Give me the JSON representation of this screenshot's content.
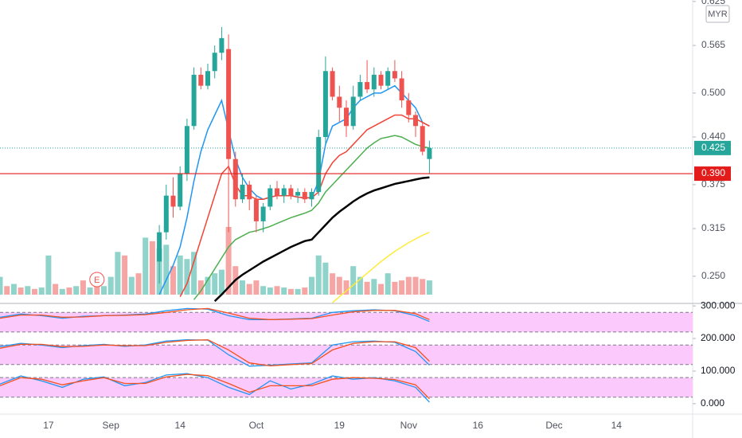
{
  "chart_data": [
    {
      "type": "candlestick",
      "currency": "MYR",
      "xlim": [
        0,
        100
      ],
      "xticks": [
        {
          "value": 7,
          "label": "17"
        },
        {
          "value": 16,
          "label": "Sep"
        },
        {
          "value": 26,
          "label": "14"
        },
        {
          "value": 37,
          "label": "Oct"
        },
        {
          "value": 49,
          "label": "19"
        },
        {
          "value": 59,
          "label": "Nov"
        },
        {
          "value": 69,
          "label": "16"
        },
        {
          "value": 80,
          "label": "Dec"
        },
        {
          "value": 89,
          "label": "14"
        }
      ],
      "ylim": [
        0.214,
        0.627
      ],
      "yticks": [
        {
          "value": 0.25,
          "label": "0.250"
        },
        {
          "value": 0.315,
          "label": "0.315"
        },
        {
          "value": 0.375,
          "label": "0.375"
        },
        {
          "value": 0.44,
          "label": "0.440"
        },
        {
          "value": 0.5,
          "label": "0.500"
        },
        {
          "value": 0.565,
          "label": "0.565"
        },
        {
          "value": 0.625,
          "label": "0.625"
        }
      ],
      "up_color": "#26a69a",
      "down_color": "#ef5350",
      "x": [
        23,
        24,
        25,
        26,
        27,
        28,
        29,
        30,
        31,
        32,
        33,
        34,
        35,
        36,
        37,
        38,
        39,
        40,
        41,
        42,
        43,
        44,
        45,
        46,
        47,
        48,
        49,
        50,
        51,
        52,
        53,
        54,
        55,
        56,
        57,
        58,
        59,
        60,
        61,
        62
      ],
      "open": [
        0.27,
        0.31,
        0.36,
        0.345,
        0.39,
        0.455,
        0.525,
        0.51,
        0.53,
        0.555,
        0.56,
        0.41,
        0.355,
        0.375,
        0.355,
        0.325,
        0.345,
        0.37,
        0.36,
        0.37,
        0.36,
        0.365,
        0.355,
        0.365,
        0.44,
        0.53,
        0.495,
        0.48,
        0.455,
        0.495,
        0.515,
        0.505,
        0.525,
        0.51,
        0.53,
        0.52,
        0.49,
        0.47,
        0.455,
        0.41
      ],
      "high": [
        0.32,
        0.375,
        0.385,
        0.4,
        0.465,
        0.535,
        0.535,
        0.54,
        0.565,
        0.59,
        0.58,
        0.42,
        0.39,
        0.38,
        0.36,
        0.35,
        0.375,
        0.38,
        0.375,
        0.375,
        0.37,
        0.37,
        0.37,
        0.45,
        0.55,
        0.535,
        0.51,
        0.49,
        0.51,
        0.525,
        0.545,
        0.535,
        0.53,
        0.535,
        0.545,
        0.53,
        0.5,
        0.475,
        0.46,
        0.435
      ],
      "low": [
        0.24,
        0.3,
        0.33,
        0.34,
        0.38,
        0.45,
        0.505,
        0.505,
        0.52,
        0.545,
        0.31,
        0.345,
        0.35,
        0.34,
        0.31,
        0.31,
        0.34,
        0.355,
        0.35,
        0.355,
        0.35,
        0.35,
        0.345,
        0.36,
        0.43,
        0.49,
        0.46,
        0.44,
        0.45,
        0.49,
        0.5,
        0.495,
        0.505,
        0.505,
        0.515,
        0.48,
        0.46,
        0.44,
        0.415,
        0.39
      ],
      "close": [
        0.31,
        0.36,
        0.345,
        0.39,
        0.455,
        0.525,
        0.51,
        0.53,
        0.555,
        0.575,
        0.41,
        0.355,
        0.375,
        0.355,
        0.325,
        0.345,
        0.37,
        0.36,
        0.37,
        0.36,
        0.365,
        0.355,
        0.365,
        0.44,
        0.53,
        0.495,
        0.48,
        0.455,
        0.495,
        0.515,
        0.505,
        0.525,
        0.51,
        0.53,
        0.52,
        0.49,
        0.47,
        0.455,
        0.42,
        0.425
      ],
      "series": [
        {
          "color": "#2196f3",
          "line_width": 1.5,
          "values": [
            0.225,
            0.245,
            0.265,
            0.29,
            0.33,
            0.38,
            0.42,
            0.45,
            0.47,
            0.49,
            0.45,
            0.41,
            0.385,
            0.37,
            0.36,
            0.355,
            0.358,
            0.36,
            0.36,
            0.36,
            0.358,
            0.357,
            0.357,
            0.38,
            0.43,
            0.455,
            0.46,
            0.465,
            0.48,
            0.49,
            0.495,
            0.5,
            0.5,
            0.505,
            0.51,
            0.5,
            0.49,
            0.48,
            0.46,
            0.455
          ]
        },
        {
          "color": "#f44336",
          "line_width": 1.5,
          "values": [
            null,
            null,
            null,
            0.222,
            0.24,
            0.27,
            0.3,
            0.33,
            0.36,
            0.39,
            0.4,
            0.375,
            0.36,
            0.36,
            0.355,
            0.355,
            0.358,
            0.36,
            0.36,
            0.36,
            0.358,
            0.357,
            0.357,
            0.365,
            0.39,
            0.405,
            0.415,
            0.42,
            0.43,
            0.44,
            0.45,
            0.455,
            0.46,
            0.465,
            0.47,
            0.47,
            0.465,
            0.465,
            0.46,
            0.455
          ]
        },
        {
          "color": "#4caf50",
          "line_width": 1.5,
          "values": [
            null,
            null,
            null,
            null,
            null,
            0.218,
            0.23,
            0.245,
            0.26,
            0.275,
            0.29,
            0.3,
            0.305,
            0.31,
            0.312,
            0.315,
            0.318,
            0.322,
            0.326,
            0.33,
            0.333,
            0.336,
            0.34,
            0.35,
            0.365,
            0.375,
            0.385,
            0.395,
            0.405,
            0.415,
            0.425,
            0.432,
            0.438,
            0.44,
            0.442,
            0.44,
            0.435,
            0.43,
            0.427,
            0.425
          ]
        },
        {
          "color": "#000000",
          "line_width": 2.5,
          "values": [
            null,
            null,
            null,
            null,
            null,
            null,
            null,
            null,
            0.216,
            0.225,
            0.235,
            0.245,
            0.252,
            0.258,
            0.264,
            0.27,
            0.275,
            0.28,
            0.285,
            0.29,
            0.294,
            0.298,
            0.3,
            0.31,
            0.32,
            0.33,
            0.338,
            0.345,
            0.352,
            0.358,
            0.363,
            0.367,
            0.37,
            0.373,
            0.376,
            0.378,
            0.38,
            0.382,
            0.384,
            0.385
          ]
        },
        {
          "color": "#ffeb3b",
          "line_width": 1.5,
          "values": [
            null,
            null,
            null,
            null,
            null,
            null,
            null,
            null,
            null,
            null,
            null,
            null,
            null,
            null,
            null,
            null,
            null,
            null,
            null,
            null,
            null,
            null,
            null,
            null,
            null,
            0.214,
            0.222,
            0.23,
            0.238,
            0.246,
            0.254,
            0.262,
            0.27,
            0.277,
            0.284,
            0.29,
            0.296,
            0.301,
            0.306,
            0.31
          ]
        }
      ],
      "volume": {
        "up_color": "#8fd3cb",
        "down_color": "#f5a6a4",
        "x": [
          0,
          1,
          2,
          3,
          4,
          5,
          6,
          7,
          8,
          9,
          10,
          11,
          12,
          13,
          14,
          15,
          16,
          17,
          18,
          19,
          20,
          21,
          22,
          23,
          24,
          25,
          26,
          27,
          28,
          29,
          30,
          31,
          32,
          33,
          34,
          35,
          36,
          37,
          38,
          39,
          40,
          41,
          42,
          43,
          44,
          45,
          46,
          47,
          48,
          49,
          50,
          51,
          52,
          53,
          54,
          55,
          56,
          57,
          58,
          59,
          60,
          61,
          62
        ],
        "values": [
          25,
          12,
          15,
          10,
          12,
          8,
          10,
          55,
          15,
          8,
          10,
          12,
          20,
          10,
          18,
          12,
          25,
          60,
          55,
          25,
          30,
          80,
          75,
          65,
          70,
          40,
          55,
          50,
          60,
          20,
          25,
          30,
          35,
          95,
          40,
          20,
          15,
          20,
          12,
          10,
          12,
          10,
          8,
          8,
          10,
          25,
          55,
          45,
          30,
          25,
          20,
          40,
          25,
          18,
          22,
          15,
          30,
          18,
          20,
          25,
          25,
          22,
          20
        ],
        "up": [
          true,
          false,
          true,
          false,
          true,
          false,
          true,
          true,
          false,
          true,
          false,
          true,
          false,
          true,
          false,
          true,
          true,
          true,
          false,
          true,
          false,
          true,
          false,
          true,
          true,
          false,
          true,
          true,
          true,
          false,
          true,
          true,
          true,
          false,
          false,
          true,
          false,
          false,
          true,
          true,
          false,
          true,
          false,
          true,
          false,
          true,
          true,
          true,
          false,
          false,
          false,
          true,
          true,
          false,
          true,
          false,
          true,
          false,
          false,
          false,
          false,
          false,
          true
        ]
      },
      "last_price": {
        "value": 0.425,
        "label": "0.425",
        "color": "#26a69a"
      },
      "price_line": {
        "value": 0.39,
        "label": "0.390",
        "color": "#e31b1b"
      },
      "event": {
        "x": 14,
        "label": "E",
        "color": "#ef5350"
      }
    },
    {
      "type": "line",
      "xlim": [
        0,
        100
      ],
      "ylim": [
        -32,
        310
      ],
      "yticks": [
        {
          "value": 0,
          "label": "0.000"
        },
        {
          "value": 100,
          "label": "100.000"
        },
        {
          "value": 200,
          "label": "200.000"
        },
        {
          "value": 300,
          "label": "300.000"
        }
      ],
      "band_color": "#fbc9fb",
      "x": [
        0,
        3,
        6,
        9,
        12,
        15,
        18,
        21,
        24,
        27,
        30,
        33,
        36,
        39,
        42,
        45,
        48,
        51,
        54,
        57,
        60,
        62
      ],
      "panels": [
        {
          "band": [
            220,
            280
          ],
          "series": [
            {
              "color": "#2196f3",
              "values": [
                265,
                275,
                270,
                262,
                268,
                270,
                272,
                275,
                285,
                292,
                290,
                270,
                258,
                258,
                260,
                262,
                280,
                285,
                288,
                285,
                270,
                252
              ]
            },
            {
              "color": "#f4511e",
              "values": [
                262,
                272,
                272,
                265,
                266,
                270,
                271,
                273,
                280,
                288,
                292,
                278,
                262,
                258,
                259,
                261,
                272,
                282,
                286,
                286,
                276,
                258
              ]
            }
          ]
        },
        {
          "band": [
            120,
            180
          ],
          "series": [
            {
              "color": "#2196f3",
              "values": [
                175,
                185,
                180,
                172,
                178,
                182,
                176,
                180,
                192,
                196,
                195,
                150,
                115,
                118,
                122,
                125,
                180,
                190,
                192,
                188,
                160,
                118
              ]
            },
            {
              "color": "#f4511e",
              "values": [
                170,
                182,
                182,
                175,
                176,
                180,
                178,
                178,
                188,
                194,
                196,
                165,
                125,
                116,
                120,
                123,
                165,
                185,
                190,
                190,
                172,
                130
              ]
            }
          ]
        },
        {
          "band": [
            20,
            80
          ],
          "series": [
            {
              "color": "#2196f3",
              "values": [
                60,
                85,
                70,
                50,
                75,
                82,
                55,
                65,
                88,
                92,
                80,
                50,
                28,
                70,
                45,
                60,
                85,
                75,
                80,
                70,
                50,
                5
              ]
            },
            {
              "color": "#f4511e",
              "values": [
                55,
                80,
                75,
                58,
                70,
                80,
                62,
                62,
                82,
                90,
                86,
                62,
                35,
                55,
                55,
                55,
                75,
                80,
                78,
                74,
                58,
                15
              ]
            }
          ]
        }
      ]
    }
  ]
}
